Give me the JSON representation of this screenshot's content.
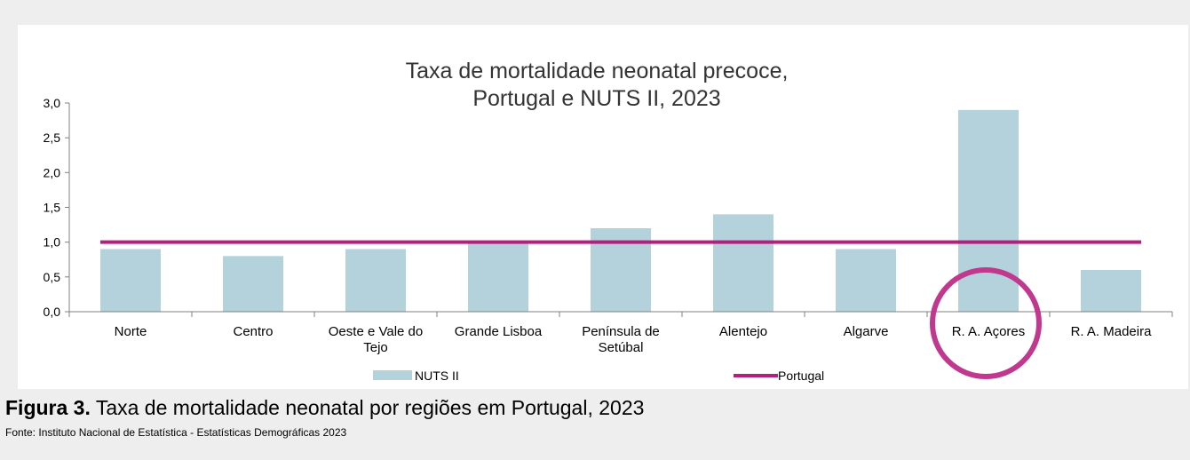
{
  "caption": {
    "label": "Figura 3.",
    "text": " Taxa de mortalidade neonatal por regiões em Portugal, 2023",
    "source": "Fonte: Instituto Nacional de Estatística - Estatísticas Demográficas 2023"
  },
  "colors": {
    "bar": "#b4d2dc",
    "line": "#b2217e",
    "highlight": "#c0398f",
    "axis": "#808080"
  },
  "chart_data": {
    "type": "bar",
    "title_lines": [
      "Taxa de mortalidade neonatal precoce,",
      "Portugal e NUTS II, 2023"
    ],
    "categories": [
      [
        "Norte"
      ],
      [
        "Centro"
      ],
      [
        "Oeste e Vale do",
        "Tejo"
      ],
      [
        "Grande Lisboa"
      ],
      [
        "Península de",
        "Setúbal"
      ],
      [
        "Alentejo"
      ],
      [
        "Algarve"
      ],
      [
        "R. A. Açores"
      ],
      [
        "R. A. Madeira"
      ]
    ],
    "series": [
      {
        "name": "NUTS II",
        "kind": "bar",
        "values": [
          0.9,
          0.8,
          0.9,
          1.0,
          1.2,
          1.4,
          0.9,
          2.9,
          0.6
        ]
      },
      {
        "name": "Portugal",
        "kind": "line",
        "values": [
          1.0,
          1.0,
          1.0,
          1.0,
          1.0,
          1.0,
          1.0,
          1.0,
          1.0
        ]
      }
    ],
    "ylim": [
      0,
      3
    ],
    "yticks": [
      "0,0",
      "0,5",
      "1,0",
      "1,5",
      "2,0",
      "2,5",
      "3,0"
    ],
    "ytick_values": [
      0,
      0.5,
      1.0,
      1.5,
      2.0,
      2.5,
      3.0
    ],
    "highlighted_category_index": 7,
    "grid": false,
    "legend_position": "bottom"
  }
}
